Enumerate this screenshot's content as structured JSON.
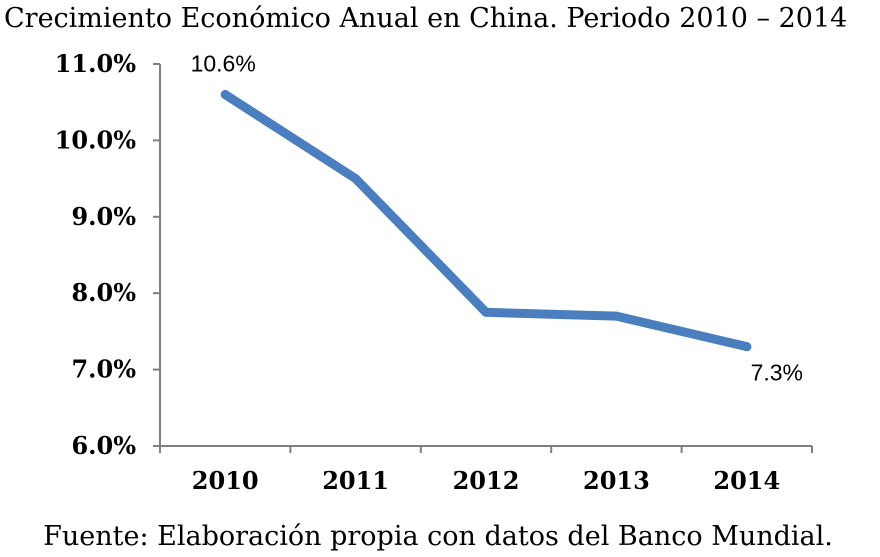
{
  "chart_data": {
    "type": "line",
    "title": "Crecimiento Económico Anual en China. Periodo 2010 – 2014",
    "source_note": "Fuente: Elaboración propia con datos del Banco Mundial.",
    "categories": [
      "2010",
      "2011",
      "2012",
      "2013",
      "2014"
    ],
    "series": [
      {
        "values": [
          10.6,
          9.5,
          7.75,
          7.7,
          7.3
        ]
      }
    ],
    "data_labels": [
      {
        "index": 0,
        "text": "10.6%"
      },
      {
        "index": 4,
        "text": "7.3%"
      }
    ],
    "ylim": [
      6.0,
      11.0
    ],
    "yticks": [
      6.0,
      7.0,
      8.0,
      9.0,
      10.0,
      11.0
    ],
    "ytick_labels": [
      "6.0%",
      "7.0%",
      "8.0%",
      "9.0%",
      "10.0%",
      "11.0%"
    ],
    "xlabel": "",
    "ylabel": "",
    "grid": false,
    "legend": "none",
    "colors": {
      "line": "#4a7ebf",
      "axis": "#7f7f7f"
    }
  }
}
